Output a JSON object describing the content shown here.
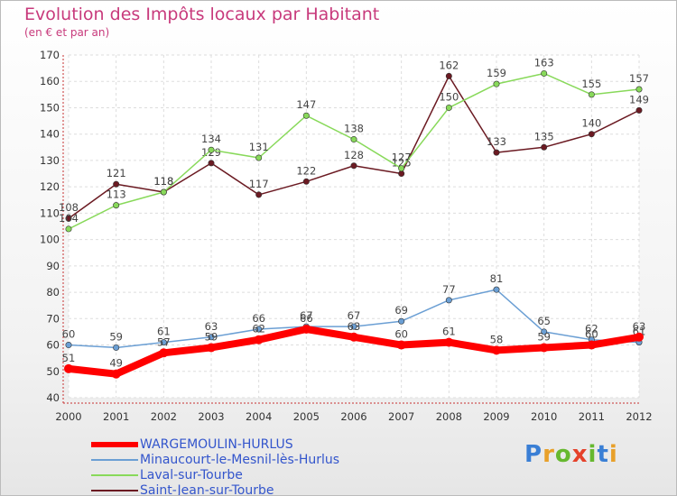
{
  "header": {
    "title": "Evolution des Impôts locaux par Habitant",
    "subtitle": "(en € et par an)"
  },
  "logo": {
    "text": "Proxiti",
    "colors": [
      "#3a7fd5",
      "#e8a02a",
      "#66b82f",
      "#e5412a",
      "#66b82f",
      "#3a7fd5",
      "#e8a02a"
    ]
  },
  "chart_data": {
    "type": "line",
    "x": [
      "2000",
      "2001",
      "2002",
      "2003",
      "2004",
      "2005",
      "2006",
      "2007",
      "2008",
      "2009",
      "2010",
      "2011",
      "2012"
    ],
    "ylim": [
      40,
      170
    ],
    "yticks": [
      40,
      50,
      60,
      70,
      80,
      90,
      100,
      110,
      120,
      130,
      140,
      150,
      160,
      170
    ],
    "grid": true,
    "legend_position": "bottom-left",
    "series": [
      {
        "name": "Saint-Jean-sur-Tourbe",
        "color": "#6b1a22",
        "values": [
          108,
          121,
          118,
          129,
          117,
          122,
          128,
          125,
          162,
          133,
          135,
          140,
          149
        ]
      },
      {
        "name": "Laval-sur-Tourbe",
        "color": "#88d95a",
        "values": [
          104,
          113,
          118,
          134,
          131,
          147,
          138,
          127,
          150,
          159,
          163,
          155,
          157
        ]
      },
      {
        "name": "Minaucourt-le-Mesnil-lès-Hurlus",
        "color": "#6b9fd4",
        "values": [
          60,
          59,
          61,
          63,
          66,
          67,
          67,
          69,
          77,
          81,
          65,
          62,
          61
        ]
      },
      {
        "name": "WARGEMOULIN-HURLUS",
        "color": "#ff0000",
        "values": [
          51,
          49,
          57,
          59,
          62,
          66,
          63,
          60,
          61,
          58,
          59,
          60,
          63
        ]
      }
    ]
  }
}
